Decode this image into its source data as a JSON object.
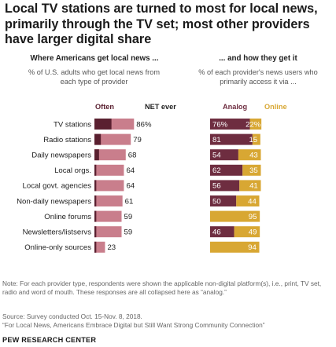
{
  "title": "Local TV stations are turned to most for local news, primarily through the TV set; most other providers have larger digital share",
  "left_panel": {
    "heading": "Where Americans get local news ...",
    "description": "% of U.S. adults who get local news from each type of provider",
    "col_often": "Often",
    "col_net": "NET ever"
  },
  "right_panel": {
    "heading": "... and how they get it",
    "description": "% of each provider's news users who primarily access it via ...",
    "col_analog": "Analog",
    "col_online": "Online"
  },
  "colors": {
    "often": "#5a2030",
    "net": "#c97e8c",
    "analog": "#6e2d40",
    "online": "#d8a733",
    "online_text": "#d8a733"
  },
  "chart_data": [
    {
      "type": "bar",
      "title": "Where Americans get local news ...",
      "categories": [
        "TV stations",
        "Radio stations",
        "Daily newspapers",
        "Local orgs.",
        "Local govt. agencies",
        "Non-daily newspapers",
        "Online forums",
        "Newsletters/listservs",
        "Online-only sources"
      ],
      "series": [
        {
          "name": "Often",
          "values": [
            37,
            14,
            10,
            4,
            4,
            4,
            4,
            4,
            4
          ]
        },
        {
          "name": "NET ever",
          "values": [
            86,
            79,
            68,
            64,
            64,
            61,
            59,
            59,
            23
          ]
        }
      ],
      "labels": [
        "86%",
        "79",
        "68",
        "64",
        "64",
        "61",
        "59",
        "59",
        "23"
      ],
      "ylim": [
        0,
        100
      ]
    },
    {
      "type": "bar",
      "title": "... and how they get it",
      "categories": [
        "TV stations",
        "Radio stations",
        "Daily newspapers",
        "Local orgs.",
        "Local govt. agencies",
        "Non-daily newspapers",
        "Online forums",
        "Newsletters/listservs",
        "Online-only sources"
      ],
      "series": [
        {
          "name": "Analog",
          "values": [
            76,
            81,
            54,
            62,
            56,
            50,
            0,
            46,
            0
          ],
          "labels": [
            "76%",
            "81",
            "54",
            "62",
            "56",
            "50",
            "",
            "46",
            ""
          ]
        },
        {
          "name": "Online",
          "values": [
            22,
            15,
            43,
            35,
            41,
            44,
            95,
            49,
            94
          ],
          "labels": [
            "22%",
            "15",
            "43",
            "35",
            "41",
            "44",
            "95",
            "49",
            "94"
          ]
        }
      ],
      "ylim": [
        0,
        100
      ]
    }
  ],
  "footer": {
    "note": "Note: For each provider type, respondents were shown the applicable non-digital platform(s), i.e., print, TV set, radio and word of mouth. These responses are all collapsed here as “analog.”",
    "source": "Source: Survey conducted Oct. 15-Nov. 8, 2018.",
    "report": "“For Local News, Americans Embrace Digital but Still Want Strong Community Connection”",
    "org": "PEW RESEARCH CENTER"
  }
}
